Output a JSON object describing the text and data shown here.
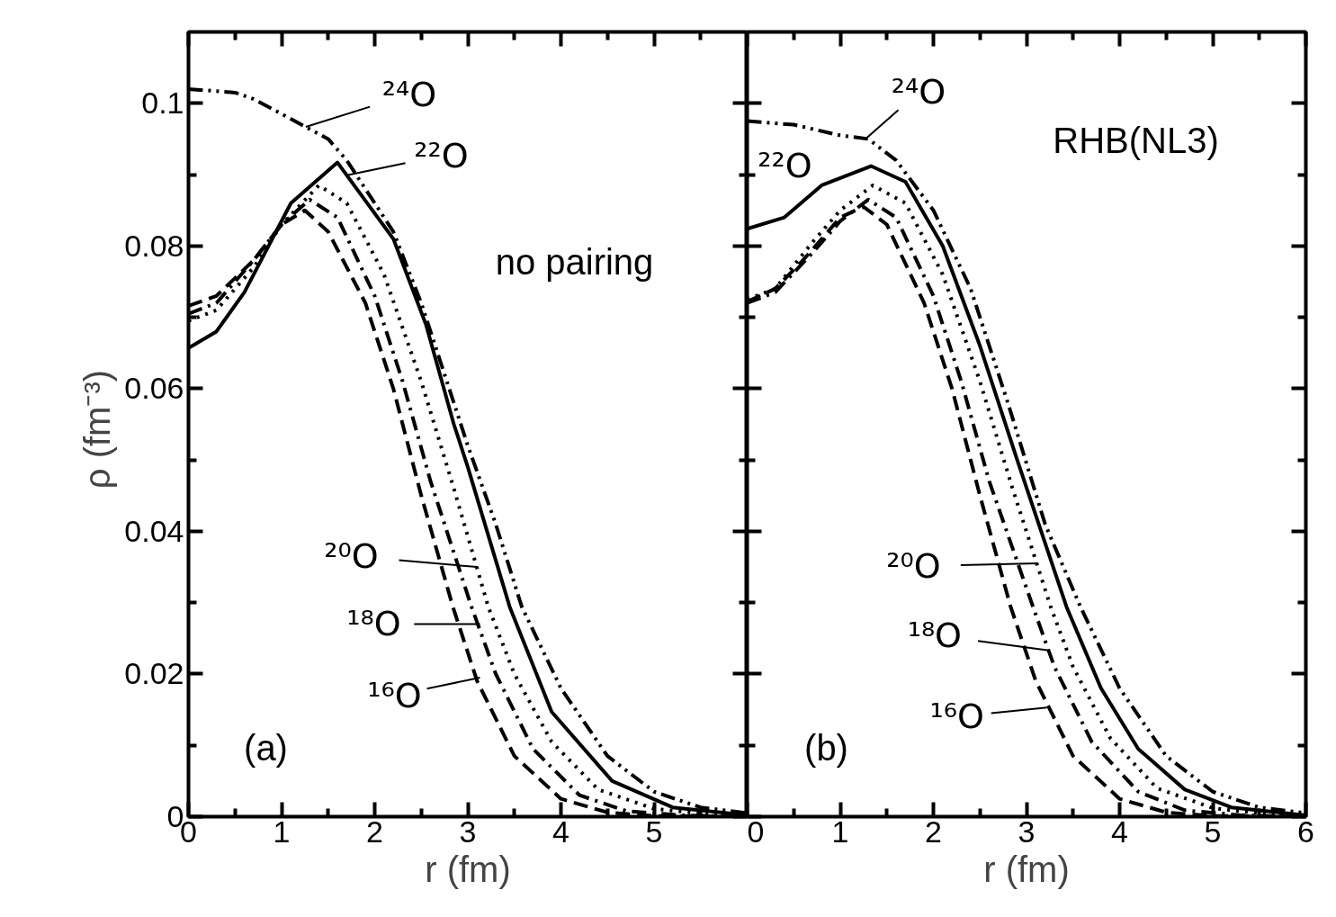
{
  "chart_data": [
    {
      "type": "line",
      "xlabel": "r (fm)",
      "ylabel": "ρ  (fm⁻³)",
      "xlim": [
        0,
        6
      ],
      "ylim": [
        0,
        0.11
      ],
      "xticks": [
        0,
        1,
        2,
        3,
        4,
        5,
        {
          "value": 0.5,
          "label": null
        },
        {
          "value": 1.5,
          "label": null
        },
        {
          "value": 2.5,
          "label": null
        },
        {
          "value": 3.5,
          "label": null
        },
        {
          "value": 4.5,
          "label": null
        },
        {
          "value": 5.5,
          "label": null
        }
      ],
      "yticks": [
        0,
        0.02,
        0.04,
        0.06,
        0.08,
        0.1,
        {
          "value": 0.01,
          "label": null
        },
        {
          "value": 0.03,
          "label": null
        },
        {
          "value": 0.05,
          "label": null
        },
        {
          "value": 0.07,
          "label": null
        },
        {
          "value": 0.09,
          "label": null
        }
      ],
      "series": [
        {
          "color": "#000000",
          "line_style": "dashed",
          "x": [
            0,
            0.3,
            0.7,
            1.0,
            1.25,
            1.5,
            1.9,
            2.2,
            2.5,
            2.84,
            3.1,
            3.5,
            4.0,
            4.5,
            5.0,
            6.0
          ],
          "values": [
            0.0716,
            0.073,
            0.078,
            0.083,
            0.085,
            0.082,
            0.072,
            0.06,
            0.045,
            0.0294,
            0.019,
            0.0085,
            0.0025,
            0.0006,
            0.0001,
            0
          ]
        },
        {
          "color": "#000000",
          "line_style": "dashdot",
          "x": [
            0,
            0.3,
            0.7,
            1.0,
            1.3,
            1.6,
            2.0,
            2.3,
            2.6,
            3.04,
            3.3,
            3.7,
            4.2,
            4.7,
            5.3,
            6.0
          ],
          "values": [
            0.0705,
            0.072,
            0.078,
            0.083,
            0.0865,
            0.084,
            0.073,
            0.061,
            0.047,
            0.0294,
            0.02,
            0.0095,
            0.003,
            0.0008,
            0.0002,
            0
          ]
        },
        {
          "color": "#000000",
          "line_style": "dotted",
          "x": [
            0,
            0.3,
            0.7,
            1.0,
            1.4,
            1.7,
            2.1,
            2.5,
            2.85,
            3.22,
            3.5,
            3.9,
            4.4,
            5.0,
            5.6,
            6.0
          ],
          "values": [
            0.0695,
            0.071,
            0.077,
            0.083,
            0.0885,
            0.086,
            0.076,
            0.061,
            0.046,
            0.0294,
            0.02,
            0.0105,
            0.0038,
            0.0011,
            0.0003,
            0.0001
          ]
        },
        {
          "color": "#000000",
          "line_style": "solid",
          "x": [
            0,
            0.3,
            0.6,
            1.1,
            1.6,
            2.2,
            2.55,
            2.85,
            3.0,
            3.45,
            3.9,
            4.55,
            5.2,
            6.0
          ],
          "values": [
            0.0657,
            0.068,
            0.0735,
            0.086,
            0.0917,
            0.081,
            0.069,
            0.055,
            0.049,
            0.0294,
            0.0147,
            0.005,
            0.0013,
            0.0002
          ]
        },
        {
          "color": "#000000",
          "line_style": "dashdotdot",
          "x": [
            0,
            0.5,
            0.7,
            1.0,
            1.5,
            1.7,
            2.0,
            2.2,
            2.5,
            2.8,
            3.0,
            3.3,
            3.58,
            4.0,
            4.5,
            5.0,
            5.5,
            6.0
          ],
          "values": [
            0.102,
            0.1015,
            0.1006,
            0.0985,
            0.095,
            0.092,
            0.086,
            0.082,
            0.072,
            0.06,
            0.052,
            0.041,
            0.0294,
            0.018,
            0.0085,
            0.0035,
            0.0013,
            0.0005
          ]
        }
      ],
      "annotations": [
        {
          "text": "²⁴O",
          "x": 1.26,
          "y": 0.0967
        },
        {
          "text": "²²O",
          "x": 1.7,
          "y": 0.0899
        },
        {
          "text": "²⁰O",
          "x": 3.1,
          "y": 0.035
        },
        {
          "text": "¹⁸O",
          "x": 3.13,
          "y": 0.027
        },
        {
          "text": "¹⁶O",
          "x": 3.13,
          "y": 0.0195
        },
        "no pairing",
        "(a)"
      ]
    },
    {
      "type": "line",
      "xlabel": "r (fm)",
      "xlim": [
        0,
        6
      ],
      "ylim": [
        0,
        0.11
      ],
      "tick_labels": "x",
      "xticks": [
        0,
        1,
        2,
        3,
        4,
        5,
        6,
        {
          "value": 0.5,
          "label": null
        },
        {
          "value": 1.5,
          "label": null
        },
        {
          "value": 2.5,
          "label": null
        },
        {
          "value": 3.5,
          "label": null
        },
        {
          "value": 4.5,
          "label": null
        },
        {
          "value": 5.5,
          "label": null
        }
      ],
      "yticks": [
        0,
        0.02,
        0.04,
        0.06,
        0.08,
        0.1,
        {
          "value": 0.01,
          "label": null
        },
        {
          "value": 0.03,
          "label": null
        },
        {
          "value": 0.05,
          "label": null
        },
        {
          "value": 0.07,
          "label": null
        },
        {
          "value": 0.09,
          "label": null
        }
      ],
      "series": [
        {
          "color": "#000000",
          "line_style": "dashed",
          "x": [
            0,
            0.3,
            0.6,
            1.0,
            1.25,
            1.5,
            1.9,
            2.2,
            2.5,
            2.83,
            3.1,
            3.5,
            4.0,
            4.5,
            5.0,
            6.0
          ],
          "values": [
            0.0722,
            0.074,
            0.078,
            0.084,
            0.0855,
            0.083,
            0.072,
            0.06,
            0.045,
            0.0294,
            0.019,
            0.0085,
            0.0025,
            0.0006,
            0.0001,
            0
          ]
        },
        {
          "color": "#000000",
          "line_style": "dashdot",
          "x": [
            0,
            0.3,
            0.7,
            1.0,
            1.3,
            1.6,
            2.0,
            2.3,
            2.6,
            3.07,
            3.3,
            3.7,
            4.2,
            4.7,
            5.3,
            6.0
          ],
          "values": [
            0.072,
            0.0735,
            0.079,
            0.0835,
            0.0865,
            0.084,
            0.073,
            0.061,
            0.047,
            0.0294,
            0.021,
            0.0105,
            0.0035,
            0.0009,
            0.0002,
            0
          ]
        },
        {
          "color": "#000000",
          "line_style": "dotted",
          "x": [
            0,
            0.3,
            0.7,
            1.0,
            1.35,
            1.7,
            2.1,
            2.5,
            2.85,
            3.26,
            3.5,
            3.9,
            4.4,
            5.0,
            5.6,
            6.0
          ],
          "values": [
            0.0725,
            0.074,
            0.0805,
            0.085,
            0.0885,
            0.086,
            0.076,
            0.061,
            0.046,
            0.0294,
            0.021,
            0.011,
            0.004,
            0.0012,
            0.0003,
            0.0001
          ]
        },
        {
          "color": "#000000",
          "line_style": "solid",
          "x": [
            0,
            0.4,
            0.8,
            1.33,
            1.7,
            2.1,
            2.5,
            2.9,
            3.43,
            3.8,
            4.2,
            4.7,
            5.2,
            6.0
          ],
          "values": [
            0.0824,
            0.084,
            0.0885,
            0.0912,
            0.089,
            0.08,
            0.066,
            0.05,
            0.0294,
            0.018,
            0.0095,
            0.0038,
            0.0013,
            0.0002
          ]
        },
        {
          "color": "#000000",
          "line_style": "dashdotdot",
          "x": [
            0,
            0.5,
            1.0,
            1.3,
            1.6,
            2.0,
            2.4,
            2.8,
            3.2,
            3.58,
            4.0,
            4.5,
            5.0,
            5.5,
            6.0
          ],
          "values": [
            0.0975,
            0.097,
            0.0955,
            0.095,
            0.092,
            0.085,
            0.074,
            0.058,
            0.041,
            0.0294,
            0.018,
            0.0085,
            0.0035,
            0.0013,
            0.0005
          ]
        }
      ],
      "annotations": [
        {
          "text": "²⁴O",
          "x": 1.27,
          "y": 0.095
        },
        {
          "text": "²²O",
          "x": 0.55,
          "y": 0.0862
        },
        {
          "text": "²⁰O",
          "x": 3.12,
          "y": 0.0355
        },
        {
          "text": "¹⁸O",
          "x": 3.24,
          "y": 0.0233
        },
        {
          "text": "¹⁶O",
          "x": 3.22,
          "y": 0.0153
        },
        "RHB(NL3)",
        "(b)"
      ]
    }
  ]
}
